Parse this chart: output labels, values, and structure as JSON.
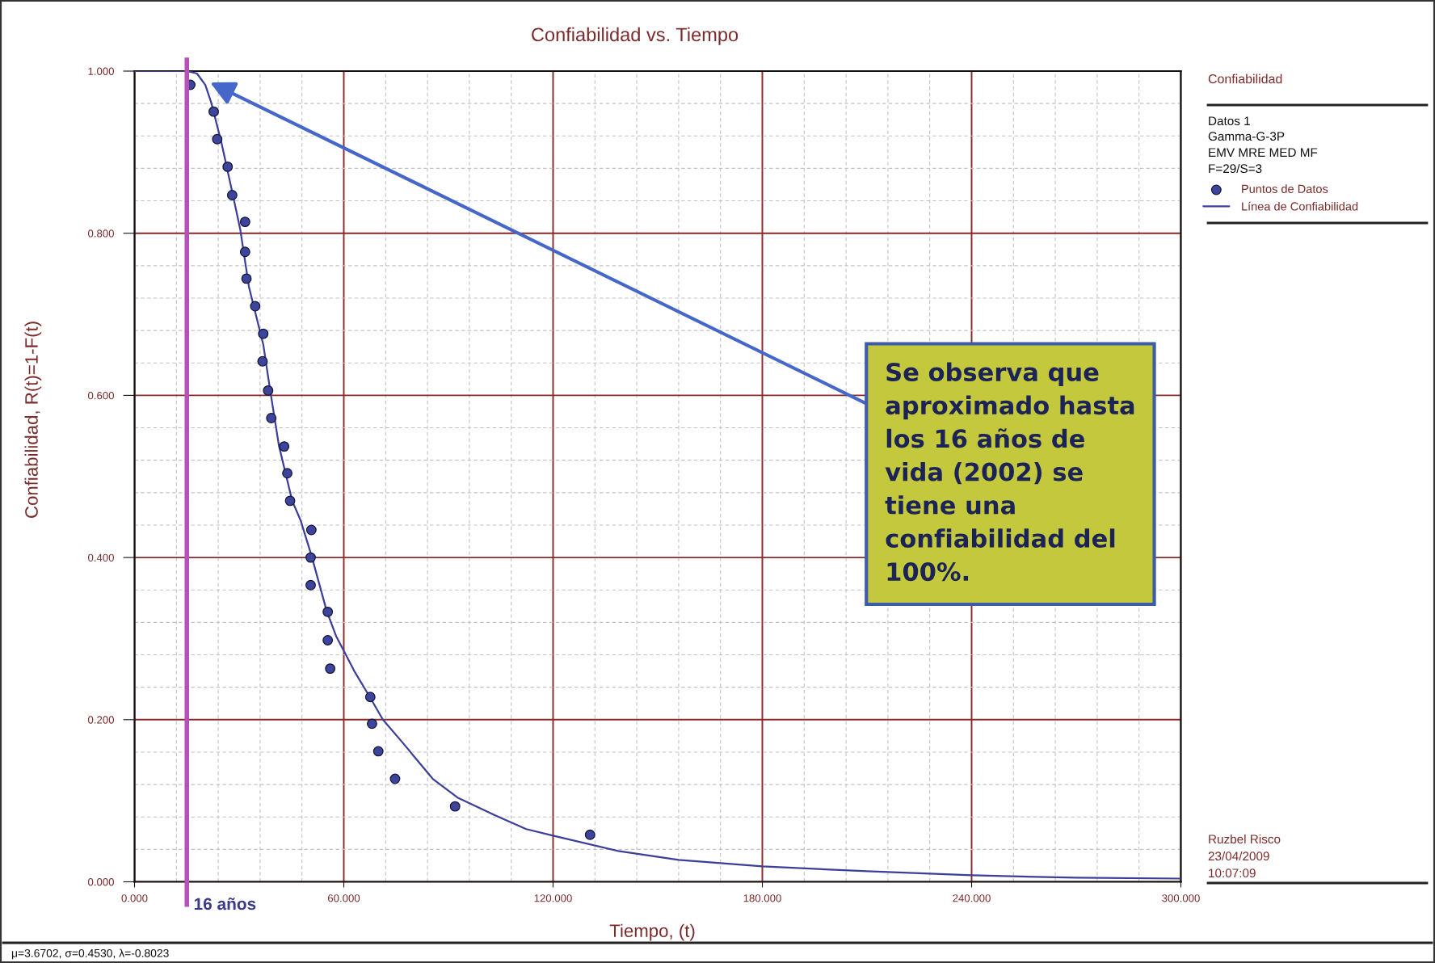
{
  "chart_data": {
    "type": "scatter",
    "title": "Confiabilidad vs. Tiempo",
    "xlabel": "Tiempo, (t)",
    "ylabel": "Confiabilidad, R(t)=1-F(t)",
    "legend_title": "Confiabilidad",
    "annotations": [
      "Se observa que aproximado hasta los 16 años de vida (2002) se tiene una confiabilidad del 100%.",
      "Datos 1",
      "Gamma-G-3P",
      "EMV MRE MED MF",
      "F=29/S=3",
      "Ruzbel Risco",
      "23/04/2009",
      "10:07:09",
      "μ=3.6702, σ=0.4530, λ=-0.8023"
    ],
    "xlim": [
      0,
      300
    ],
    "ylim": [
      0,
      1
    ],
    "xticks": [
      {
        "value": 0,
        "label": "0.000"
      },
      {
        "value": 60,
        "label": "60.000"
      },
      {
        "value": 120,
        "label": "120.000"
      },
      {
        "value": 180,
        "label": "180.000"
      },
      {
        "value": 240,
        "label": "240.000"
      },
      {
        "value": 300,
        "label": "300.000"
      }
    ],
    "yticks": [
      {
        "value": 0,
        "label": "0.000"
      },
      {
        "value": 0.2,
        "label": "0.200"
      },
      {
        "value": 0.4,
        "label": "0.400"
      },
      {
        "value": 0.6,
        "label": "0.600"
      },
      {
        "value": 0.8,
        "label": "0.800"
      },
      {
        "value": 1,
        "label": "1.000"
      }
    ],
    "grid": true,
    "legend": "right",
    "ref_lines": [
      {
        "axis": "x",
        "value": 15,
        "label": "16 años",
        "color": "#b452b8"
      }
    ],
    "series": [
      {
        "name": "Puntos de Datos",
        "marker": "circle",
        "color": "#3d449c",
        "x": [
          16.0,
          22.7,
          23.7,
          26.7,
          28.0,
          31.7,
          31.7,
          32.1,
          34.6,
          36.9,
          36.7,
          38.3,
          39.2,
          42.9,
          43.8,
          44.6,
          50.7,
          50.5,
          50.5,
          55.4,
          55.4,
          56.1,
          67.6,
          68.1,
          69.9,
          74.7,
          91.9,
          130.6
        ],
        "values": [
          0.983,
          0.95,
          0.916,
          0.882,
          0.847,
          0.814,
          0.777,
          0.744,
          0.71,
          0.676,
          0.642,
          0.606,
          0.572,
          0.537,
          0.504,
          0.47,
          0.434,
          0.4,
          0.366,
          0.333,
          0.298,
          0.263,
          0.228,
          0.195,
          0.161,
          0.127,
          0.093,
          0.058
        ]
      },
      {
        "name": "Línea de Confiabilidad",
        "type": "line",
        "color": "#3b3f9a",
        "x": [
          0,
          15,
          17.9,
          20.3,
          22.0,
          24.9,
          27.8,
          30.3,
          32.8,
          36.9,
          38.9,
          41.4,
          45.2,
          47.6,
          50.7,
          55.1,
          57.8,
          60.0,
          63.0,
          67.6,
          71.2,
          76.6,
          85.5,
          92.6,
          103.4,
          112.3,
          120.0,
          138.7,
          156.0,
          180.0,
          210.0,
          240.0,
          270.0,
          300.0
        ],
        "values": [
          1,
          1,
          0.997,
          0.983,
          0.961,
          0.912,
          0.855,
          0.805,
          0.734,
          0.663,
          0.606,
          0.538,
          0.47,
          0.446,
          0.403,
          0.334,
          0.303,
          0.285,
          0.26,
          0.227,
          0.2,
          0.173,
          0.127,
          0.104,
          0.082,
          0.065,
          0.057,
          0.038,
          0.027,
          0.019,
          0.013,
          0.008,
          0.005,
          0.004
        ]
      }
    ]
  }
}
